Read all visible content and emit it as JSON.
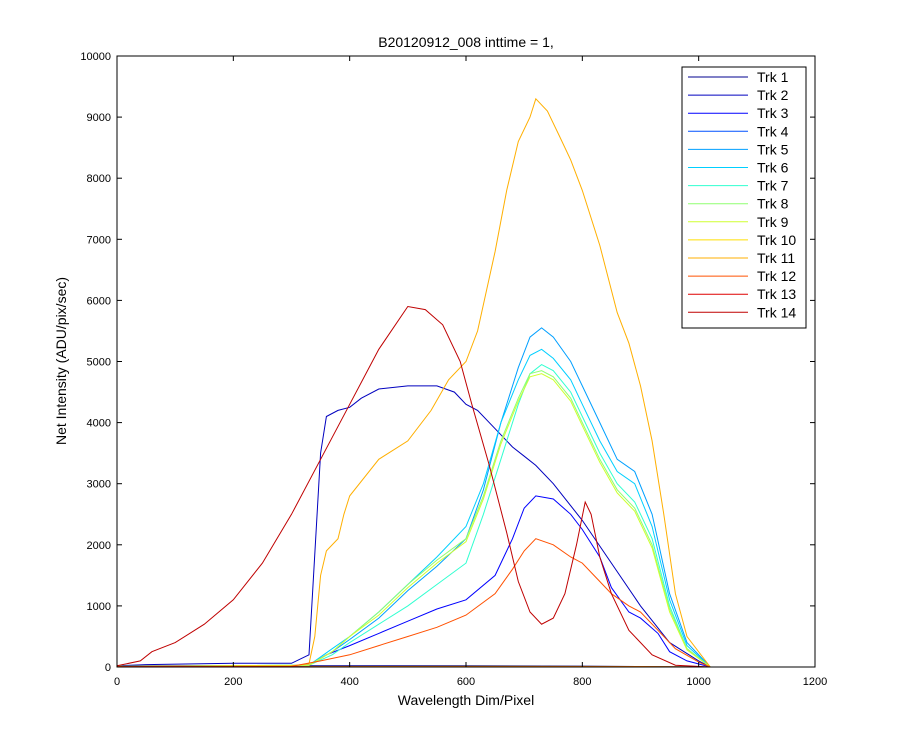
{
  "chart_data": {
    "type": "line",
    "title": "B20120912_008 inttime = 1,",
    "xlabel": "Wavelength Dim/Pixel",
    "ylabel": "Net Intensity (ADU/pix/sec)",
    "xlim": [
      0,
      1200
    ],
    "ylim": [
      0,
      10000
    ],
    "xticks": [
      "0",
      "200",
      "400",
      "600",
      "800",
      "1000",
      "1200"
    ],
    "yticks": [
      "0",
      "1000",
      "2000",
      "3000",
      "4000",
      "5000",
      "6000",
      "7000",
      "8000",
      "9000",
      "10000"
    ],
    "legend_position": "top-right",
    "series": [
      {
        "name": "Trk 1",
        "color": "#00008f",
        "points": [
          [
            0,
            20
          ],
          [
            300,
            20
          ],
          [
            600,
            20
          ],
          [
            800,
            15
          ],
          [
            1020,
            0
          ]
        ]
      },
      {
        "name": "Trk 2",
        "color": "#0000bf",
        "points": [
          [
            0,
            20
          ],
          [
            50,
            40
          ],
          [
            200,
            60
          ],
          [
            300,
            60
          ],
          [
            330,
            200
          ],
          [
            350,
            3500
          ],
          [
            360,
            4100
          ],
          [
            380,
            4200
          ],
          [
            400,
            4250
          ],
          [
            420,
            4400
          ],
          [
            450,
            4550
          ],
          [
            500,
            4600
          ],
          [
            550,
            4600
          ],
          [
            580,
            4500
          ],
          [
            600,
            4300
          ],
          [
            620,
            4200
          ],
          [
            650,
            3900
          ],
          [
            680,
            3600
          ],
          [
            700,
            3450
          ],
          [
            720,
            3300
          ],
          [
            750,
            3000
          ],
          [
            800,
            2400
          ],
          [
            850,
            1700
          ],
          [
            900,
            1000
          ],
          [
            950,
            400
          ],
          [
            1000,
            100
          ],
          [
            1020,
            0
          ]
        ]
      },
      {
        "name": "Trk 3",
        "color": "#0000ff",
        "points": [
          [
            0,
            10
          ],
          [
            300,
            10
          ],
          [
            330,
            30
          ],
          [
            360,
            200
          ],
          [
            400,
            350
          ],
          [
            450,
            550
          ],
          [
            500,
            750
          ],
          [
            550,
            950
          ],
          [
            600,
            1100
          ],
          [
            650,
            1500
          ],
          [
            680,
            2100
          ],
          [
            700,
            2600
          ],
          [
            720,
            2800
          ],
          [
            750,
            2750
          ],
          [
            780,
            2500
          ],
          [
            800,
            2250
          ],
          [
            830,
            1800
          ],
          [
            850,
            1300
          ],
          [
            880,
            900
          ],
          [
            900,
            800
          ],
          [
            930,
            550
          ],
          [
            950,
            250
          ],
          [
            980,
            100
          ],
          [
            1020,
            0
          ]
        ]
      },
      {
        "name": "Trk 4",
        "color": "#0050ff",
        "points": [
          [
            0,
            5
          ],
          [
            300,
            5
          ],
          [
            600,
            5
          ],
          [
            900,
            5
          ],
          [
            1020,
            0
          ]
        ]
      },
      {
        "name": "Trk 5",
        "color": "#009fff",
        "points": [
          [
            0,
            10
          ],
          [
            330,
            30
          ],
          [
            370,
            250
          ],
          [
            400,
            450
          ],
          [
            450,
            800
          ],
          [
            500,
            1250
          ],
          [
            550,
            1650
          ],
          [
            600,
            2100
          ],
          [
            630,
            2900
          ],
          [
            660,
            4000
          ],
          [
            690,
            4900
          ],
          [
            710,
            5400
          ],
          [
            730,
            5550
          ],
          [
            750,
            5400
          ],
          [
            780,
            5000
          ],
          [
            800,
            4600
          ],
          [
            830,
            4000
          ],
          [
            860,
            3400
          ],
          [
            890,
            3200
          ],
          [
            920,
            2500
          ],
          [
            950,
            1200
          ],
          [
            980,
            400
          ],
          [
            1020,
            0
          ]
        ]
      },
      {
        "name": "Trk 6",
        "color": "#00cfff",
        "points": [
          [
            0,
            10
          ],
          [
            330,
            30
          ],
          [
            370,
            300
          ],
          [
            400,
            500
          ],
          [
            450,
            900
          ],
          [
            500,
            1350
          ],
          [
            550,
            1800
          ],
          [
            600,
            2300
          ],
          [
            630,
            3000
          ],
          [
            660,
            4000
          ],
          [
            690,
            4700
          ],
          [
            710,
            5100
          ],
          [
            730,
            5200
          ],
          [
            750,
            5050
          ],
          [
            780,
            4700
          ],
          [
            800,
            4300
          ],
          [
            830,
            3700
          ],
          [
            860,
            3200
          ],
          [
            890,
            3000
          ],
          [
            920,
            2300
          ],
          [
            950,
            1100
          ],
          [
            980,
            350
          ],
          [
            1020,
            0
          ]
        ]
      },
      {
        "name": "Trk 7",
        "color": "#30ffd0",
        "points": [
          [
            0,
            10
          ],
          [
            330,
            30
          ],
          [
            370,
            200
          ],
          [
            400,
            400
          ],
          [
            450,
            700
          ],
          [
            500,
            1000
          ],
          [
            550,
            1350
          ],
          [
            600,
            1700
          ],
          [
            630,
            2500
          ],
          [
            660,
            3400
          ],
          [
            690,
            4300
          ],
          [
            710,
            4800
          ],
          [
            730,
            4950
          ],
          [
            750,
            4850
          ],
          [
            780,
            4500
          ],
          [
            800,
            4100
          ],
          [
            830,
            3500
          ],
          [
            860,
            3000
          ],
          [
            890,
            2700
          ],
          [
            920,
            2100
          ],
          [
            950,
            1000
          ],
          [
            980,
            300
          ],
          [
            1020,
            0
          ]
        ]
      },
      {
        "name": "Trk 8",
        "color": "#8fff70",
        "points": [
          [
            0,
            10
          ],
          [
            330,
            30
          ],
          [
            370,
            250
          ],
          [
            400,
            500
          ],
          [
            450,
            900
          ],
          [
            500,
            1350
          ],
          [
            550,
            1750
          ],
          [
            600,
            2100
          ],
          [
            630,
            2800
          ],
          [
            660,
            3700
          ],
          [
            690,
            4400
          ],
          [
            710,
            4800
          ],
          [
            730,
            4850
          ],
          [
            750,
            4750
          ],
          [
            780,
            4400
          ],
          [
            800,
            4000
          ],
          [
            830,
            3400
          ],
          [
            860,
            2900
          ],
          [
            890,
            2600
          ],
          [
            920,
            2000
          ],
          [
            950,
            950
          ],
          [
            980,
            300
          ],
          [
            1020,
            0
          ]
        ]
      },
      {
        "name": "Trk 9",
        "color": "#cfff30",
        "points": [
          [
            0,
            10
          ],
          [
            330,
            30
          ],
          [
            370,
            250
          ],
          [
            400,
            500
          ],
          [
            450,
            850
          ],
          [
            500,
            1300
          ],
          [
            550,
            1700
          ],
          [
            600,
            2050
          ],
          [
            630,
            2750
          ],
          [
            660,
            3650
          ],
          [
            690,
            4350
          ],
          [
            710,
            4750
          ],
          [
            730,
            4800
          ],
          [
            750,
            4700
          ],
          [
            780,
            4350
          ],
          [
            800,
            3950
          ],
          [
            830,
            3350
          ],
          [
            860,
            2850
          ],
          [
            890,
            2550
          ],
          [
            920,
            1950
          ],
          [
            950,
            900
          ],
          [
            980,
            280
          ],
          [
            1020,
            0
          ]
        ]
      },
      {
        "name": "Trk 10",
        "color": "#ffdf00",
        "points": [
          [
            0,
            5
          ],
          [
            300,
            5
          ],
          [
            600,
            10
          ],
          [
            900,
            8
          ],
          [
            1020,
            0
          ]
        ]
      },
      {
        "name": "Trk 11",
        "color": "#ffaf00",
        "points": [
          [
            0,
            10
          ],
          [
            300,
            20
          ],
          [
            330,
            50
          ],
          [
            340,
            500
          ],
          [
            350,
            1500
          ],
          [
            360,
            1900
          ],
          [
            380,
            2100
          ],
          [
            390,
            2500
          ],
          [
            400,
            2800
          ],
          [
            450,
            3400
          ],
          [
            500,
            3700
          ],
          [
            540,
            4200
          ],
          [
            570,
            4700
          ],
          [
            600,
            5000
          ],
          [
            620,
            5500
          ],
          [
            650,
            6800
          ],
          [
            670,
            7800
          ],
          [
            690,
            8600
          ],
          [
            710,
            9000
          ],
          [
            720,
            9300
          ],
          [
            740,
            9100
          ],
          [
            760,
            8700
          ],
          [
            780,
            8300
          ],
          [
            800,
            7800
          ],
          [
            830,
            6900
          ],
          [
            860,
            5800
          ],
          [
            880,
            5300
          ],
          [
            900,
            4600
          ],
          [
            920,
            3700
          ],
          [
            940,
            2500
          ],
          [
            960,
            1200
          ],
          [
            980,
            500
          ],
          [
            1020,
            0
          ]
        ]
      },
      {
        "name": "Trk 12",
        "color": "#ff5000",
        "points": [
          [
            0,
            5
          ],
          [
            300,
            10
          ],
          [
            350,
            100
          ],
          [
            400,
            200
          ],
          [
            450,
            350
          ],
          [
            500,
            500
          ],
          [
            550,
            650
          ],
          [
            600,
            850
          ],
          [
            650,
            1200
          ],
          [
            680,
            1600
          ],
          [
            700,
            1900
          ],
          [
            720,
            2100
          ],
          [
            750,
            2000
          ],
          [
            780,
            1800
          ],
          [
            800,
            1700
          ],
          [
            830,
            1400
          ],
          [
            850,
            1200
          ],
          [
            880,
            1000
          ],
          [
            900,
            900
          ],
          [
            930,
            600
          ],
          [
            960,
            300
          ],
          [
            1000,
            80
          ],
          [
            1020,
            0
          ]
        ]
      },
      {
        "name": "Trk 13",
        "color": "#df0000",
        "points": [
          [
            0,
            5
          ],
          [
            300,
            5
          ],
          [
            600,
            5
          ],
          [
            900,
            5
          ],
          [
            1020,
            0
          ]
        ]
      },
      {
        "name": "Trk 14",
        "color": "#bf0000",
        "points": [
          [
            0,
            20
          ],
          [
            40,
            100
          ],
          [
            60,
            250
          ],
          [
            100,
            400
          ],
          [
            150,
            700
          ],
          [
            200,
            1100
          ],
          [
            250,
            1700
          ],
          [
            300,
            2500
          ],
          [
            350,
            3400
          ],
          [
            400,
            4300
          ],
          [
            450,
            5200
          ],
          [
            500,
            5900
          ],
          [
            530,
            5850
          ],
          [
            560,
            5600
          ],
          [
            590,
            5000
          ],
          [
            610,
            4300
          ],
          [
            640,
            3300
          ],
          [
            670,
            2200
          ],
          [
            690,
            1400
          ],
          [
            710,
            900
          ],
          [
            730,
            700
          ],
          [
            750,
            800
          ],
          [
            770,
            1200
          ],
          [
            790,
            2000
          ],
          [
            805,
            2700
          ],
          [
            815,
            2500
          ],
          [
            830,
            1800
          ],
          [
            850,
            1200
          ],
          [
            880,
            600
          ],
          [
            920,
            200
          ],
          [
            960,
            30
          ],
          [
            1020,
            0
          ]
        ]
      }
    ]
  }
}
